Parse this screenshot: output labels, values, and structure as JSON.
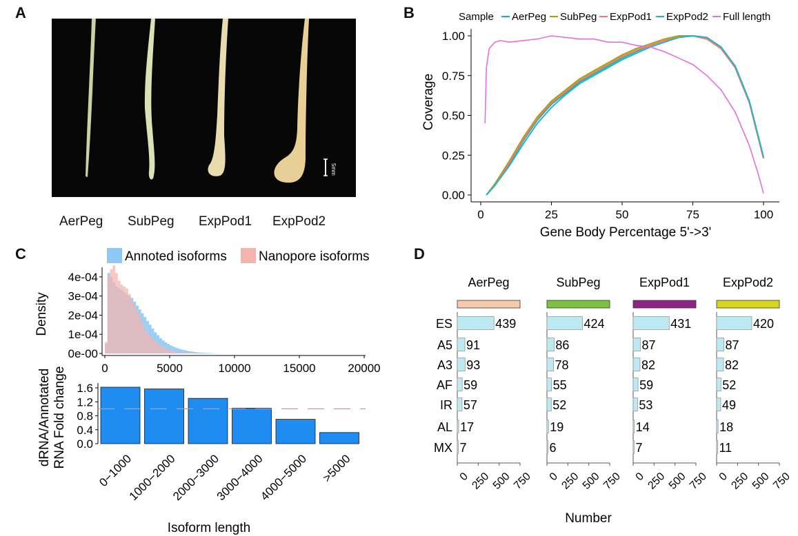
{
  "panels": {
    "a": "A",
    "b": "B",
    "c": "C",
    "d": "D"
  },
  "panel_a": {
    "captions": [
      "AerPeg",
      "SubPeg",
      "ExpPod1",
      "ExpPod2"
    ],
    "scale_bar_label": "5mm",
    "colors": {
      "background": "#070707",
      "stem": "#c7d3a3",
      "pod": "#e8cf96"
    }
  },
  "colors": {
    "AerPeg": "#20b2aa",
    "SubPeg": "#a3a500",
    "ExpPod1": "#f8766d",
    "ExpPod2": "#1fb6cc",
    "Full length": "#e26fe0",
    "annotated_fill": "#8ec9f4",
    "nanopore_fill": "#f4b4ad",
    "fold_bar": "#1e8cf0",
    "reference_line": "#e88a8a",
    "D_bar": "#bdeaf2"
  },
  "chart_data": [
    {
      "id": "B",
      "type": "line",
      "legend_title": "Sample",
      "legend_position": "top",
      "xlabel": "Gene Body Percentage 5'->3'",
      "ylabel": "Coverage",
      "xlim": [
        0,
        100
      ],
      "ylim": [
        0,
        1
      ],
      "xticks": [
        0,
        25,
        50,
        75,
        100
      ],
      "yticks": [
        "0.00",
        "0.25",
        "0.50",
        "0.75",
        "1.00"
      ],
      "grid": false,
      "series": [
        {
          "name": "AerPeg",
          "x": [
            2,
            5,
            10,
            15,
            20,
            25,
            30,
            35,
            40,
            45,
            50,
            55,
            60,
            65,
            70,
            75,
            80,
            85,
            90,
            95,
            100
          ],
          "y": [
            0.0,
            0.06,
            0.19,
            0.34,
            0.47,
            0.57,
            0.64,
            0.71,
            0.76,
            0.81,
            0.86,
            0.9,
            0.94,
            0.97,
            0.99,
            1.0,
            0.98,
            0.92,
            0.8,
            0.58,
            0.23
          ]
        },
        {
          "name": "SubPeg",
          "x": [
            2,
            5,
            10,
            15,
            20,
            25,
            30,
            35,
            40,
            45,
            50,
            55,
            60,
            65,
            70,
            75,
            80,
            85,
            90,
            95,
            100
          ],
          "y": [
            0.0,
            0.07,
            0.21,
            0.36,
            0.49,
            0.59,
            0.66,
            0.73,
            0.78,
            0.83,
            0.88,
            0.92,
            0.95,
            0.98,
            1.0,
            1.0,
            0.98,
            0.92,
            0.8,
            0.58,
            0.23
          ]
        },
        {
          "name": "ExpPod1",
          "x": [
            2,
            5,
            10,
            15,
            20,
            25,
            30,
            35,
            40,
            45,
            50,
            55,
            60,
            65,
            70,
            75,
            80,
            85,
            90,
            95,
            100
          ],
          "y": [
            0.0,
            0.06,
            0.2,
            0.35,
            0.48,
            0.58,
            0.65,
            0.72,
            0.77,
            0.82,
            0.87,
            0.91,
            0.94,
            0.97,
            0.99,
            1.0,
            0.98,
            0.92,
            0.8,
            0.58,
            0.23
          ]
        },
        {
          "name": "ExpPod2",
          "x": [
            2,
            5,
            10,
            15,
            20,
            25,
            30,
            35,
            40,
            45,
            50,
            55,
            60,
            65,
            70,
            75,
            80,
            85,
            90,
            95,
            100
          ],
          "y": [
            0.0,
            0.06,
            0.18,
            0.32,
            0.45,
            0.55,
            0.63,
            0.7,
            0.75,
            0.8,
            0.85,
            0.89,
            0.93,
            0.96,
            0.99,
            1.0,
            0.99,
            0.93,
            0.81,
            0.59,
            0.24
          ]
        },
        {
          "name": "Full length",
          "x": [
            1.5,
            2,
            3,
            5,
            7,
            10,
            15,
            20,
            25,
            30,
            35,
            40,
            45,
            50,
            55,
            60,
            65,
            70,
            75,
            80,
            85,
            90,
            95,
            98,
            100
          ],
          "y": [
            0.45,
            0.8,
            0.92,
            0.96,
            0.97,
            0.96,
            0.97,
            0.98,
            1.0,
            0.99,
            0.98,
            0.98,
            0.96,
            0.96,
            0.94,
            0.93,
            0.9,
            0.86,
            0.82,
            0.75,
            0.66,
            0.52,
            0.31,
            0.14,
            0.01
          ]
        }
      ]
    },
    {
      "id": "C-density",
      "type": "histogram",
      "ylabel": "Density",
      "xticks": [
        "0",
        "5000",
        "10000",
        "15000",
        "20000"
      ],
      "yticks": [
        "0e-00",
        "1e-04",
        "2e-04",
        "3e-04",
        "4e-04"
      ],
      "xlim": [
        0,
        20000
      ],
      "ylim": [
        0,
        0.00045
      ],
      "legend_position": "top",
      "bin_width": 200,
      "series": [
        {
          "name": "Annoted isoforms",
          "values": [
            5e-05,
            0.00042,
            0.0004,
            0.00037,
            0.00035,
            0.00034,
            0.00033,
            0.00032,
            0.00031,
            0.0003,
            0.00029,
            0.00027,
            0.00025,
            0.00023,
            0.00021,
            0.00019,
            0.00017,
            0.00015,
            0.00013,
            0.00011,
            9.5e-05,
            8e-05,
            6.8e-05,
            5.8e-05,
            5e-05,
            4.2e-05,
            3.6e-05,
            3e-05,
            2.5e-05,
            2.1e-05,
            1.8e-05,
            1.5e-05,
            1.2e-05,
            1e-05,
            8e-06,
            6.5e-06,
            5e-06,
            4e-06,
            3e-06,
            2.5e-06,
            2e-06,
            1.5e-06,
            1e-06
          ]
        },
        {
          "name": "Nanopore isoforms",
          "values": [
            6e-05,
            0.0004,
            0.00044,
            0.00046,
            0.00042,
            0.00038,
            0.00036,
            0.00035,
            0.00034,
            0.00031,
            0.00028,
            0.00025,
            0.00022,
            0.00019,
            0.00016,
            0.00013,
            0.00011,
            9.5e-05,
            8e-05,
            6.5e-05,
            5.2e-05,
            4.2e-05,
            3.4e-05,
            2.7e-05,
            2.1e-05,
            1.6e-05,
            1.2e-05,
            9e-06,
            7e-06,
            5e-06,
            4e-06,
            3e-06,
            2e-06,
            1.5e-06,
            1e-06
          ]
        }
      ]
    },
    {
      "id": "C-fold",
      "type": "bar",
      "categories": [
        "0−1000",
        "1000−2000",
        "2000−3000",
        "3000−4000",
        "4000−5000",
        ">5000"
      ],
      "values": [
        1.62,
        1.57,
        1.3,
        1.02,
        0.7,
        0.32
      ],
      "reference_line": 1.0,
      "xlabel": "Isoform length",
      "ylabel": [
        "dRNA/Annotated",
        "RNA Fold change"
      ],
      "yticks": [
        "0.0",
        "0.4",
        "0.8",
        "1.2",
        "1.6"
      ],
      "ylim": [
        0,
        1.6
      ]
    },
    {
      "id": "D",
      "type": "bar",
      "orientation": "horizontal",
      "categories": [
        "ES",
        "A5",
        "A3",
        "AF",
        "IR",
        "AL",
        "MX"
      ],
      "xlabel": "Number",
      "xticks": [
        "0",
        "250",
        "500",
        "750"
      ],
      "xlim": [
        0,
        750
      ],
      "series": [
        {
          "name": "AerPeg",
          "color": "#f6c9ac",
          "values": [
            439,
            91,
            93,
            59,
            57,
            17,
            7
          ]
        },
        {
          "name": "SubPeg",
          "color": "#7cc241",
          "values": [
            424,
            86,
            78,
            55,
            52,
            19,
            6
          ]
        },
        {
          "name": "ExpPod1",
          "color": "#8c2484",
          "values": [
            431,
            87,
            82,
            59,
            53,
            14,
            7
          ]
        },
        {
          "name": "ExpPod2",
          "color": "#d6d61d",
          "values": [
            420,
            87,
            82,
            52,
            49,
            18,
            11
          ]
        }
      ]
    }
  ]
}
